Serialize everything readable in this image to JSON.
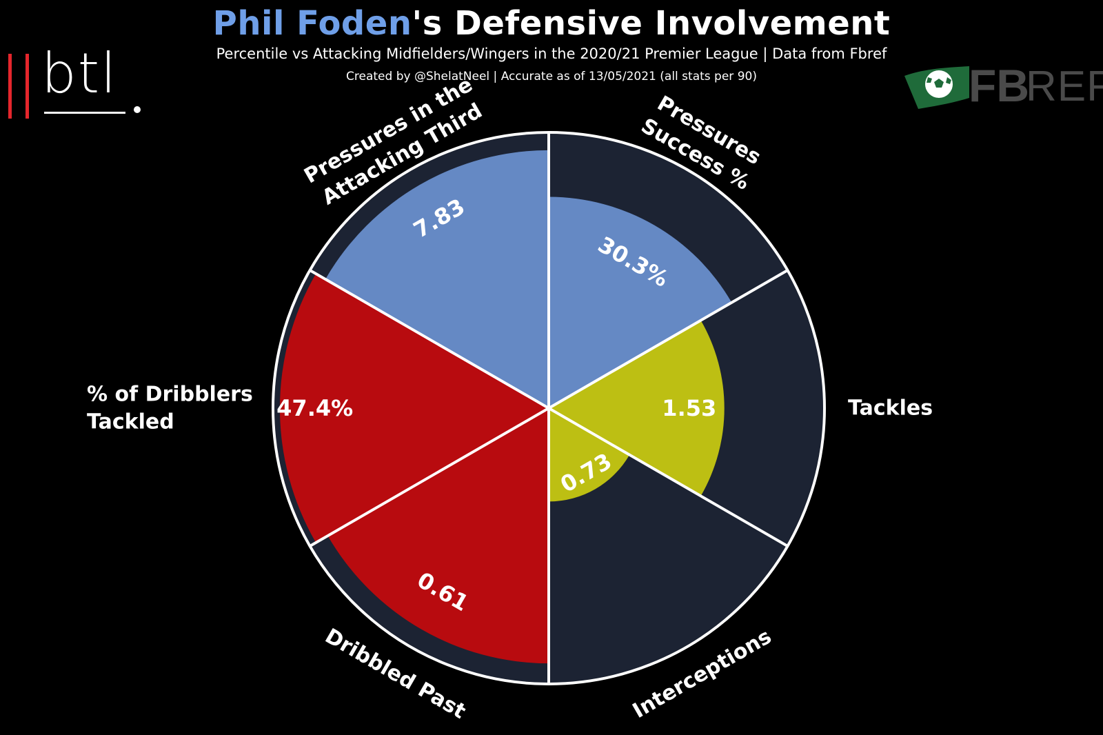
{
  "header": {
    "title_player": "Phil Foden",
    "title_rest": "'s Defensive Involvement",
    "subtitle": "Percentile vs Attacking Midfielders/Wingers in the 2020/21 Premier League | Data from Fbref",
    "credit": "Created by @ShelatNeel | Accurate as of 13/05/2021 (all stats per 90)"
  },
  "logos": {
    "btl_text": "btl",
    "fbref_fb": "FB",
    "fbref_ref": "REF"
  },
  "colors": {
    "background": "#000000",
    "slice_background": "#1c2333",
    "possession": "#6589c4",
    "defending": "#bdbf13",
    "dribbling": "#b80b0f",
    "player_highlight": "#6f9fe8",
    "btl_red": "#e5262c",
    "fbref_green": "#1f6b3a"
  },
  "chart_data": {
    "type": "polar_bar",
    "title": "Phil Foden's Defensive Involvement",
    "radial_scale": "percentile",
    "ylim": [
      0,
      100
    ],
    "categories": [
      "Pressures\nSuccess %",
      "Tackles",
      "Interceptions",
      "Dribbled Past",
      "% of Dribblers\nTackled",
      "Pressures in the\nAttacking Third"
    ],
    "percentiles": [
      77,
      64,
      34,
      93,
      98,
      94
    ],
    "value_labels": [
      "30.3%",
      "1.53",
      "0.73",
      "0.61",
      "47.4%",
      "7.83"
    ],
    "slice_colors": [
      "#6589c4",
      "#bdbf13",
      "#bdbf13",
      "#b80b0f",
      "#b80b0f",
      "#6589c4"
    ]
  }
}
